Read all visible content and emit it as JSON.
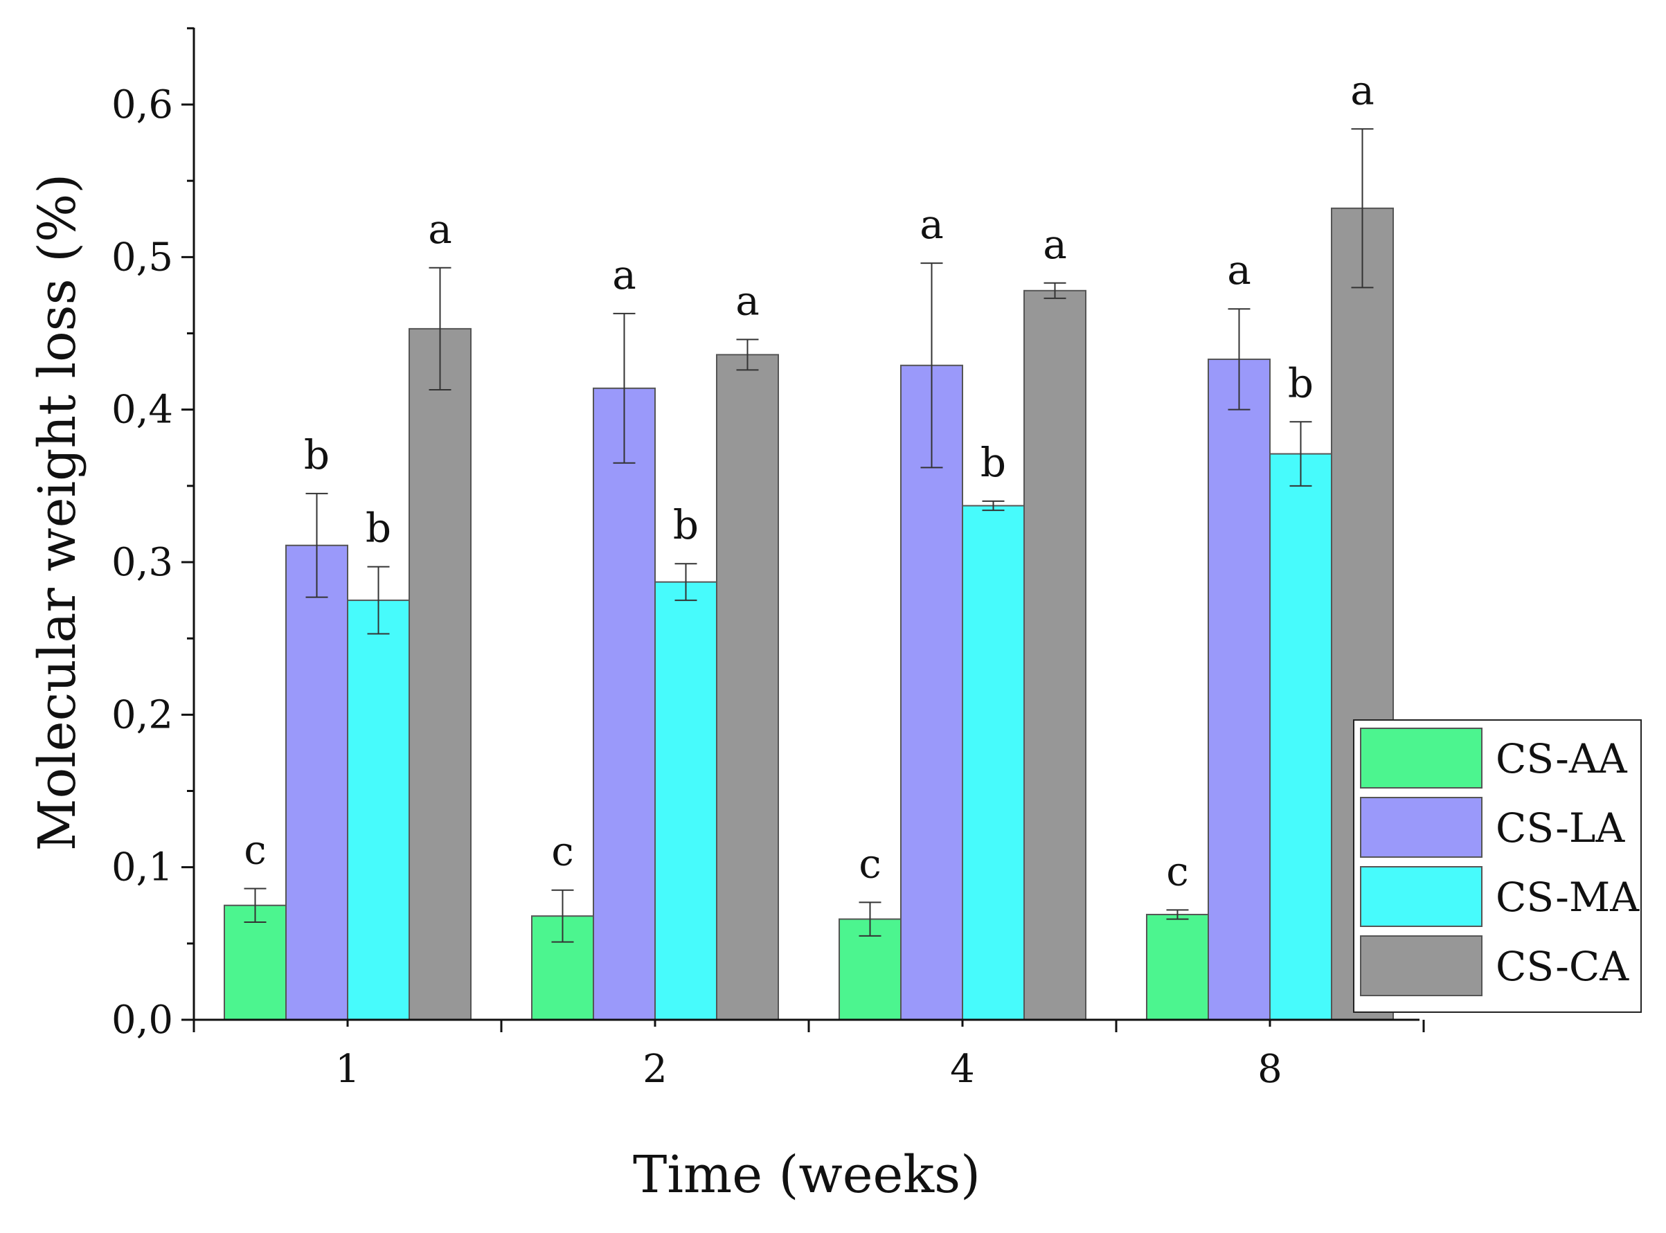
{
  "chart_data": {
    "type": "bar",
    "title": "",
    "xlabel": "Time (weeks)",
    "ylabel": "Molecular weight loss (%)",
    "ylim": [
      0,
      0.65
    ],
    "y_ticks": [
      0.0,
      0.1,
      0.2,
      0.3,
      0.4,
      0.5,
      0.6
    ],
    "y_tick_labels": [
      "0,0",
      "0,1",
      "0,2",
      "0,3",
      "0,4",
      "0,5",
      "0,6"
    ],
    "categories": [
      "1",
      "2",
      "4",
      "8"
    ],
    "grid": false,
    "legend_position": "bottom-right",
    "series": [
      {
        "name": "CS-AA",
        "color": "#4cf58f",
        "values": [
          0.075,
          0.068,
          0.066,
          0.069
        ],
        "errors": [
          0.011,
          0.017,
          0.011,
          0.003
        ],
        "letters": [
          "c",
          "c",
          "c",
          "c"
        ]
      },
      {
        "name": "CS-LA",
        "color": "#9a99fa",
        "values": [
          0.311,
          0.414,
          0.429,
          0.433
        ],
        "errors": [
          0.034,
          0.049,
          0.067,
          0.033
        ],
        "letters": [
          "b",
          "a",
          "a",
          "a"
        ]
      },
      {
        "name": "CS-MA",
        "color": "#47fbfc",
        "values": [
          0.275,
          0.287,
          0.337,
          0.371
        ],
        "errors": [
          0.022,
          0.012,
          0.003,
          0.021
        ],
        "letters": [
          "b",
          "b",
          "b",
          "b"
        ]
      },
      {
        "name": "CS-CA",
        "color": "#979797",
        "values": [
          0.453,
          0.436,
          0.478,
          0.532
        ],
        "errors": [
          0.04,
          0.01,
          0.005,
          0.052
        ],
        "letters": [
          "a",
          "a",
          "a",
          "a"
        ]
      }
    ]
  }
}
